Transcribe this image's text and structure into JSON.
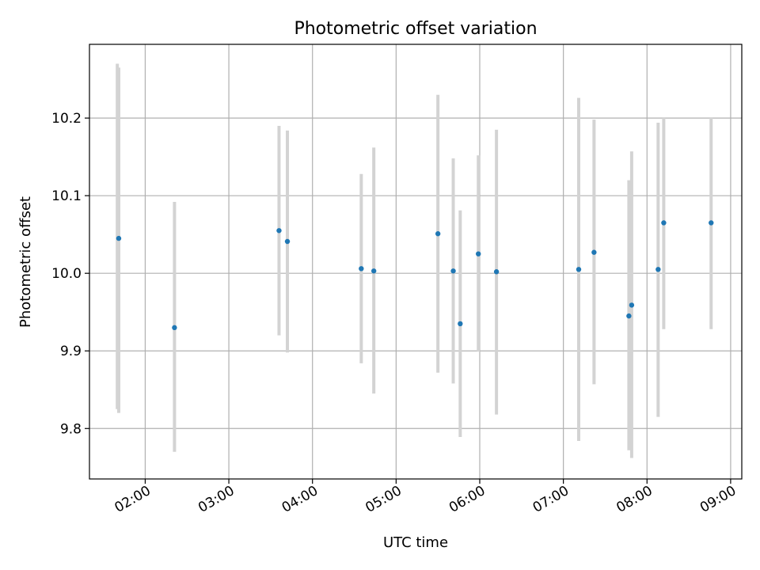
{
  "chart_data": {
    "type": "scatter",
    "title": "Photometric offset variation",
    "xlabel": "UTC time",
    "ylabel": "Photometric offset",
    "x_unit": "UTC time (HH:MM)",
    "xlim": [
      "01:20",
      "09:08"
    ],
    "ylim": [
      9.735,
      10.295
    ],
    "x_ticks": [
      "02:00",
      "03:00",
      "04:00",
      "05:00",
      "06:00",
      "07:00",
      "08:00",
      "09:00"
    ],
    "y_ticks": [
      9.8,
      9.9,
      10.0,
      10.1,
      10.2
    ],
    "y_tick_labels": [
      "9.8",
      "9.9",
      "10.0",
      "10.1",
      "10.2"
    ],
    "grid": true,
    "legend": false,
    "marker_color": "#1f77b4",
    "errorbar_color": "#d3d3d3",
    "points": [
      {
        "x": "01:41",
        "y": 10.045,
        "err_lo": 9.82,
        "err_hi": 10.265
      },
      {
        "x": "01:40",
        "y": null,
        "err_lo": 9.825,
        "err_hi": 10.27
      },
      {
        "x": "02:21",
        "y": 9.93,
        "err_lo": 9.77,
        "err_hi": 10.092
      },
      {
        "x": "03:36",
        "y": 10.055,
        "err_lo": 9.92,
        "err_hi": 10.19
      },
      {
        "x": "03:42",
        "y": 10.041,
        "err_lo": 9.898,
        "err_hi": 10.184
      },
      {
        "x": "04:35",
        "y": 10.006,
        "err_lo": 9.884,
        "err_hi": 10.128
      },
      {
        "x": "04:44",
        "y": 10.003,
        "err_lo": 9.845,
        "err_hi": 10.162
      },
      {
        "x": "05:30",
        "y": 10.051,
        "err_lo": 9.872,
        "err_hi": 10.23
      },
      {
        "x": "05:41",
        "y": 10.003,
        "err_lo": 9.858,
        "err_hi": 10.148
      },
      {
        "x": "05:46",
        "y": 9.935,
        "err_lo": 9.789,
        "err_hi": 10.081
      },
      {
        "x": "05:59",
        "y": 10.025,
        "err_lo": 9.899,
        "err_hi": 10.152
      },
      {
        "x": "06:12",
        "y": 10.002,
        "err_lo": 9.818,
        "err_hi": 10.185
      },
      {
        "x": "07:11",
        "y": 10.005,
        "err_lo": 9.784,
        "err_hi": 10.226
      },
      {
        "x": "07:22",
        "y": 10.027,
        "err_lo": 9.857,
        "err_hi": 10.198
      },
      {
        "x": "07:47",
        "y": 9.945,
        "err_lo": 9.772,
        "err_hi": 10.12
      },
      {
        "x": "07:49",
        "y": 9.959,
        "err_lo": 9.762,
        "err_hi": 10.157
      },
      {
        "x": "08:08",
        "y": 10.005,
        "err_lo": 9.815,
        "err_hi": 10.194
      },
      {
        "x": "08:12",
        "y": 10.065,
        "err_lo": 9.928,
        "err_hi": 10.201
      },
      {
        "x": "08:46",
        "y": 10.065,
        "err_lo": 9.928,
        "err_hi": 10.201
      }
    ]
  }
}
